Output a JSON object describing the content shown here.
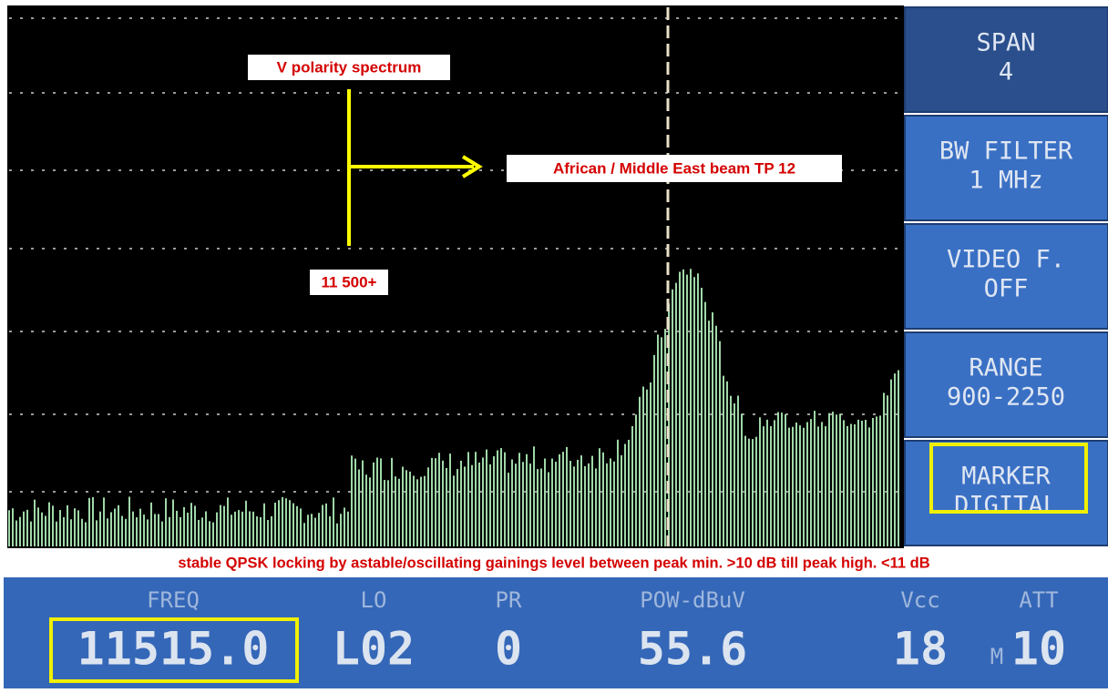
{
  "annotations": {
    "title": "V polarity spectrum",
    "beam": "African / Middle East beam TP 12",
    "freq_note": "11 500+",
    "footer": "stable QPSK locking by astable/oscillating gainings level between peak min. >10 dB till peak high. <11 dB"
  },
  "menu": [
    {
      "line1": "SPAN",
      "line2": "4"
    },
    {
      "line1": "BW FILTER",
      "line2": "1 MHz"
    },
    {
      "line1": "VIDEO F.",
      "line2": "OFF"
    },
    {
      "line1": "RANGE",
      "line2": "900-2250"
    },
    {
      "line1": "MARKER",
      "line2": "DIGITAL"
    }
  ],
  "status": [
    {
      "label": "FREQ",
      "value": "11515.0"
    },
    {
      "label": "LO",
      "value": "L02"
    },
    {
      "label": "PR",
      "value": "0"
    },
    {
      "label": "POW-dBuV",
      "value": "55.6"
    },
    {
      "label": "Vcc",
      "value": "18"
    },
    {
      "label": "ATT",
      "prefix": "M",
      "value": "10"
    }
  ]
}
